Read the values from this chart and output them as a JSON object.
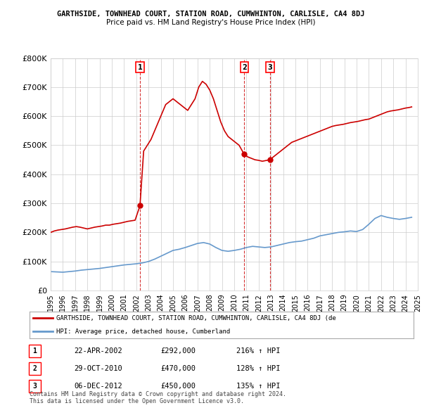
{
  "title1": "GARTHSIDE, TOWNHEAD COURT, STATION ROAD, CUMWHINTON, CARLISLE, CA4 8DJ",
  "title2": "Price paid vs. HM Land Registry's House Price Index (HPI)",
  "ylabel": "",
  "ylim": [
    0,
    800000
  ],
  "yticks": [
    0,
    100000,
    200000,
    300000,
    400000,
    500000,
    600000,
    700000,
    800000
  ],
  "ytick_labels": [
    "£0",
    "£100K",
    "£200K",
    "£300K",
    "£400K",
    "£500K",
    "£600K",
    "£700K",
    "£800K"
  ],
  "hpi_color": "#6699cc",
  "price_color": "#cc0000",
  "vline_color": "#cc0000",
  "vline_style": "--",
  "background_color": "#ffffff",
  "grid_color": "#cccccc",
  "sale_dates": [
    "2002-04-22",
    "2010-10-29",
    "2012-12-06"
  ],
  "sale_prices": [
    292000,
    470000,
    450000
  ],
  "sale_labels": [
    "1",
    "2",
    "3"
  ],
  "legend_label_price": "GARTHSIDE, TOWNHEAD COURT, STATION ROAD, CUMWHINTON, CARLISLE, CA4 8DJ (de",
  "legend_label_hpi": "HPI: Average price, detached house, Cumberland",
  "table_data": [
    [
      "1",
      "22-APR-2002",
      "£292,000",
      "216% ↑ HPI"
    ],
    [
      "2",
      "29-OCT-2010",
      "£470,000",
      "128% ↑ HPI"
    ],
    [
      "3",
      "06-DEC-2012",
      "£450,000",
      "135% ↑ HPI"
    ]
  ],
  "footnote": "Contains HM Land Registry data © Crown copyright and database right 2024.\nThis data is licensed under the Open Government Licence v3.0.",
  "hpi_data_x": [
    1995.0,
    1995.5,
    1996.0,
    1996.5,
    1997.0,
    1997.5,
    1998.0,
    1998.5,
    1999.0,
    1999.5,
    2000.0,
    2000.5,
    2001.0,
    2001.5,
    2002.0,
    2002.5,
    2003.0,
    2003.5,
    2004.0,
    2004.5,
    2005.0,
    2005.5,
    2006.0,
    2006.5,
    2007.0,
    2007.5,
    2008.0,
    2008.5,
    2009.0,
    2009.5,
    2010.0,
    2010.5,
    2011.0,
    2011.5,
    2012.0,
    2012.5,
    2013.0,
    2013.5,
    2014.0,
    2014.5,
    2015.0,
    2015.5,
    2016.0,
    2016.5,
    2017.0,
    2017.5,
    2018.0,
    2018.5,
    2019.0,
    2019.5,
    2020.0,
    2020.5,
    2021.0,
    2021.5,
    2022.0,
    2022.5,
    2023.0,
    2023.5,
    2024.0,
    2024.5
  ],
  "hpi_data_y": [
    65000,
    64000,
    63000,
    65000,
    67000,
    70000,
    72000,
    74000,
    76000,
    79000,
    82000,
    85000,
    88000,
    90000,
    92000,
    95000,
    100000,
    108000,
    118000,
    128000,
    138000,
    142000,
    148000,
    155000,
    162000,
    165000,
    160000,
    148000,
    138000,
    135000,
    138000,
    142000,
    148000,
    152000,
    150000,
    148000,
    150000,
    155000,
    160000,
    165000,
    168000,
    170000,
    175000,
    180000,
    188000,
    192000,
    196000,
    200000,
    202000,
    205000,
    203000,
    210000,
    228000,
    248000,
    258000,
    252000,
    248000,
    245000,
    248000,
    252000
  ],
  "price_data_x": [
    1995.0,
    1995.3,
    1995.6,
    1995.9,
    1996.2,
    1996.5,
    1996.8,
    1997.1,
    1997.4,
    1997.7,
    1998.0,
    1998.3,
    1998.6,
    1998.9,
    1999.2,
    1999.5,
    1999.8,
    2000.1,
    2000.4,
    2000.7,
    2001.0,
    2001.3,
    2001.6,
    2001.9,
    2002.3,
    2002.6,
    2002.9,
    2003.2,
    2003.5,
    2003.8,
    2004.1,
    2004.4,
    2004.7,
    2005.0,
    2005.3,
    2005.6,
    2005.9,
    2006.2,
    2006.5,
    2006.8,
    2007.1,
    2007.4,
    2007.7,
    2008.0,
    2008.3,
    2008.6,
    2008.9,
    2009.2,
    2009.5,
    2009.8,
    2010.1,
    2010.4,
    2010.8,
    2011.1,
    2011.4,
    2011.7,
    2012.0,
    2012.3,
    2012.9,
    2013.2,
    2013.5,
    2013.8,
    2014.1,
    2014.4,
    2014.7,
    2015.0,
    2015.3,
    2015.6,
    2015.9,
    2016.2,
    2016.5,
    2016.8,
    2017.1,
    2017.4,
    2017.7,
    2018.0,
    2018.3,
    2018.6,
    2018.9,
    2019.2,
    2019.5,
    2019.8,
    2020.1,
    2020.4,
    2020.7,
    2021.0,
    2021.3,
    2021.6,
    2021.9,
    2022.2,
    2022.5,
    2022.8,
    2023.1,
    2023.4,
    2023.7,
    2024.0,
    2024.3,
    2024.5
  ],
  "price_data_y": [
    200000,
    205000,
    208000,
    210000,
    212000,
    215000,
    218000,
    220000,
    218000,
    215000,
    212000,
    215000,
    218000,
    220000,
    222000,
    225000,
    225000,
    228000,
    230000,
    232000,
    235000,
    238000,
    240000,
    242000,
    292000,
    480000,
    500000,
    520000,
    550000,
    580000,
    610000,
    640000,
    650000,
    660000,
    650000,
    640000,
    630000,
    620000,
    640000,
    660000,
    700000,
    720000,
    710000,
    690000,
    660000,
    620000,
    580000,
    550000,
    530000,
    520000,
    510000,
    500000,
    470000,
    460000,
    455000,
    450000,
    448000,
    445000,
    450000,
    460000,
    470000,
    480000,
    490000,
    500000,
    510000,
    515000,
    520000,
    525000,
    530000,
    535000,
    540000,
    545000,
    550000,
    555000,
    560000,
    565000,
    568000,
    570000,
    572000,
    575000,
    578000,
    580000,
    582000,
    585000,
    588000,
    590000,
    595000,
    600000,
    605000,
    610000,
    615000,
    618000,
    620000,
    622000,
    625000,
    628000,
    630000,
    632000
  ]
}
